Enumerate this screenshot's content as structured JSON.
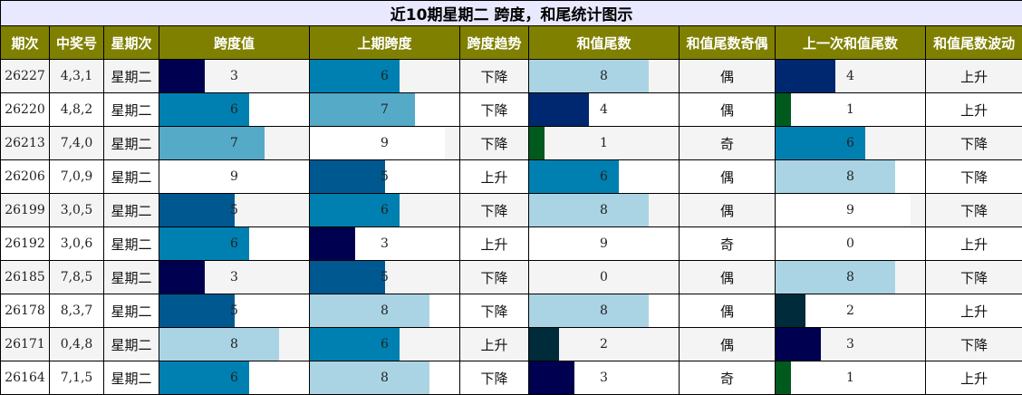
{
  "title": "近10期星期二 跨度，和尾统计图示",
  "chart_data": {
    "type": "table",
    "columns": [
      "期次",
      "中奖号",
      "星期次",
      "跨度值",
      "上期跨度",
      "跨度趋势",
      "和值尾数",
      "和值尾数奇偶",
      "上一次和值尾数",
      "和值尾数波动"
    ],
    "bar_scale_max": 10,
    "bar_colors": {
      "0": "#ffffff",
      "1": "#005a1e",
      "2": "#002b3a",
      "3": "#000050",
      "4": "#002870",
      "5": "#005890",
      "6": "#0080b0",
      "7": "#55aac8",
      "8": "#aad4e4",
      "9": "#ffffff"
    },
    "rows": [
      {
        "period": "26227",
        "numbers": "4,3,1",
        "weekday": "星期二",
        "span": 3,
        "prev_span": 6,
        "span_trend": "下降",
        "sum_tail": 8,
        "parity": "偶",
        "prev_sum_tail": 4,
        "tail_wave": "上升"
      },
      {
        "period": "26220",
        "numbers": "4,8,2",
        "weekday": "星期二",
        "span": 6,
        "prev_span": 7,
        "span_trend": "下降",
        "sum_tail": 4,
        "parity": "偶",
        "prev_sum_tail": 1,
        "tail_wave": "上升"
      },
      {
        "period": "26213",
        "numbers": "7,4,0",
        "weekday": "星期二",
        "span": 7,
        "prev_span": 9,
        "span_trend": "下降",
        "sum_tail": 1,
        "parity": "奇",
        "prev_sum_tail": 6,
        "tail_wave": "下降"
      },
      {
        "period": "26206",
        "numbers": "7,0,9",
        "weekday": "星期二",
        "span": 9,
        "prev_span": 5,
        "span_trend": "上升",
        "sum_tail": 6,
        "parity": "偶",
        "prev_sum_tail": 8,
        "tail_wave": "下降"
      },
      {
        "period": "26199",
        "numbers": "3,0,5",
        "weekday": "星期二",
        "span": 5,
        "prev_span": 6,
        "span_trend": "下降",
        "sum_tail": 8,
        "parity": "偶",
        "prev_sum_tail": 9,
        "tail_wave": "下降"
      },
      {
        "period": "26192",
        "numbers": "3,0,6",
        "weekday": "星期二",
        "span": 6,
        "prev_span": 3,
        "span_trend": "上升",
        "sum_tail": 9,
        "parity": "奇",
        "prev_sum_tail": 0,
        "tail_wave": "上升"
      },
      {
        "period": "26185",
        "numbers": "7,8,5",
        "weekday": "星期二",
        "span": 3,
        "prev_span": 5,
        "span_trend": "下降",
        "sum_tail": 0,
        "parity": "偶",
        "prev_sum_tail": 8,
        "tail_wave": "下降"
      },
      {
        "period": "26178",
        "numbers": "8,3,7",
        "weekday": "星期二",
        "span": 5,
        "prev_span": 8,
        "span_trend": "下降",
        "sum_tail": 8,
        "parity": "偶",
        "prev_sum_tail": 2,
        "tail_wave": "上升"
      },
      {
        "period": "26171",
        "numbers": "0,4,8",
        "weekday": "星期二",
        "span": 8,
        "prev_span": 6,
        "span_trend": "上升",
        "sum_tail": 2,
        "parity": "偶",
        "prev_sum_tail": 3,
        "tail_wave": "下降"
      },
      {
        "period": "26164",
        "numbers": "7,1,5",
        "weekday": "星期二",
        "span": 6,
        "prev_span": 8,
        "span_trend": "下降",
        "sum_tail": 3,
        "parity": "奇",
        "prev_sum_tail": 1,
        "tail_wave": "上升"
      }
    ]
  }
}
